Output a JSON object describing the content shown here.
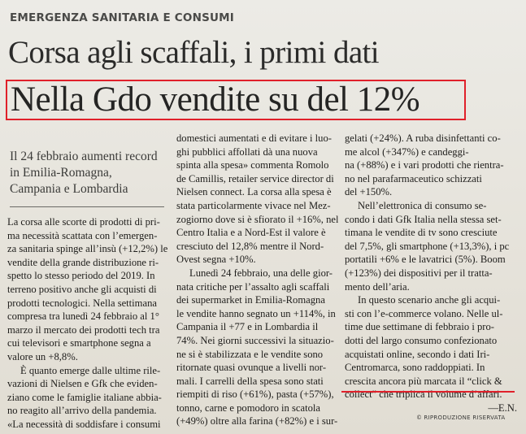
{
  "section": "EMERGENZA SANITARIA E CONSUMI",
  "headline_primary": "Corsa agli scaffali, i primi dati",
  "headline_secondary": "Nella Gdo vendite su del 12%",
  "summary": "Il 24 febbraio aumenti record in Emilia-Romagna, Campania e Lombardia",
  "column1": [
    "La corsa alle scorte di prodotti di pri-",
    "ma necessità scattata con l’emergen-",
    "za sanitaria spinge all’insù (+12,2%) le",
    "vendite della grande distribuzione ri-",
    "spetto lo stesso periodo del 2019. In",
    "terreno positivo anche gli acquisti di",
    "prodotti tecnologici. Nella settimana",
    "compresa tra lunedì 24 febbraio al 1°",
    "marzo il mercato dei prodotti tech tra",
    "cui televisori e smartphone segna a",
    "valore un +8,8%.",
    "È quanto emerge dalle ultime rile-",
    "vazioni di Nielsen e Gfk che eviden-",
    "ziano come le famiglie italiane abbia-",
    "no reagito all’arrivo della pandemia.",
    "«La necessità di soddisfare i consumi"
  ],
  "column2": [
    "domestici aumentati e di evitare i luo-",
    "ghi pubblici affollati dà una nuova",
    "spinta alla spesa» commenta Romolo",
    "de Camillis, retailer service director di",
    "Nielsen connect. La corsa alla spesa è",
    "stata particolarmente vivace nel Mez-",
    "zogiorno dove si è sfiorato il +16%, nel",
    "Centro Italia e a Nord-Est il valore è",
    "cresciuto del 12,8% mentre il Nord-",
    "Ovest segna +10%.",
    "Lunedì 24 febbraio, una delle gior-",
    "nata critiche per l’assalto agli scaffali",
    "dei supermarket in Emilia-Romagna",
    "le vendite hanno segnato un +114%, in",
    "Campania il +77 e in Lombardia il",
    "74%. Nei giorni successivi la situazio-",
    "ne si è stabilizzata e le vendite sono",
    "ritornate quasi ovunque a livelli nor-",
    "mali. I carrelli della spesa sono stati",
    "riempiti di riso (+61%), pasta (+57%),",
    "tonno, carne e pomodoro in scatola",
    "(+49%) oltre alla farina (+82%) e i sur-"
  ],
  "column3": [
    "gelati (+24%). A ruba disinfettanti co-",
    "me alcol (+347%) e candeggi-",
    "na (+88%) e i vari prodotti che rientra-",
    "no nel parafarmaceutico schizzati",
    "del +150%.",
    "Nell’elettronica di consumo se-",
    "condo i dati Gfk Italia nella stessa set-",
    "timana le vendite di tv sono cresciute",
    "del 7,5%, gli smartphone (+13,3%), i pc",
    "portatili +6% e le lavatrici (5%). Boom",
    "(+123%) dei dispositivi per il tratta-",
    "mento dell’aria.",
    "In questo scenario anche gli acqui-",
    "sti con l’e-commerce volano. Nelle ul-",
    "time due settimane di febbraio i pro-",
    "dotti del largo consumo confezionato",
    "acquistati online, secondo i dati Iri-",
    "Centromarca, sono raddoppiati. In",
    "crescita ancora più marcata il “click &",
    "collect” che triplica il volume d’affari.",
    "—E.N."
  ],
  "copyright": "RIPRODUZIONE RISERVATA",
  "copyright_icon": "copyright-icon",
  "colors": {
    "highlight": "#e0202a",
    "paper": "#e9e6de",
    "ink": "#1c1b19"
  }
}
